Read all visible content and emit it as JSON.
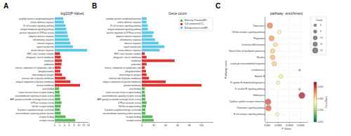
{
  "chart_data": [
    {
      "type": "bar",
      "orientation": "horizontal",
      "title": "-log10(P-Value)",
      "annotations": [
        "A"
      ],
      "categories": [
        "peptidyl-tyrosine autophosphorylation",
        "cellular defense response",
        "B cell receptor signaling pathway",
        "integrin-mediated signaling pathway",
        "positive regulation of GTPase activity",
        "adaptive immune response",
        "inflammatory response",
        "immune response",
        "signal transduction",
        "innate immune response",
        "MHC class I protein complex",
        "phagocytic vesicle membrane",
        "membrane",
        "podosome",
        "intrinsic component of cytoplasmic side of",
        "phagolysosomes",
        "immunological synapse",
        "external side of plasma membrane",
        "integral component of plasma membrane",
        "plasma membrane",
        "actin binding",
        "tumor necrosis factor receptor binding",
        "transmembrane signaling receptor activity",
        "ARF guanyl-nucleotide exchange factor activity",
        "GTPase activator activity",
        "Toll-like receptor binding",
        "G-protein coupled purinergic nucleotide",
        "non-membrane spanning protein tyrosine",
        "receptor binding",
        "receptor activity"
      ],
      "values": [
        3.5,
        3.8,
        4.5,
        4.8,
        5.2,
        5.5,
        6.0,
        6.5,
        7.5,
        13.5,
        2.2,
        2.5,
        3.0,
        2.8,
        2.5,
        2.3,
        3.0,
        4.5,
        6.5,
        10.5,
        1.8,
        2.0,
        2.2,
        2.3,
        2.8,
        2.5,
        2.2,
        2.5,
        4.5,
        8.5
      ],
      "colors": [
        "#5bc8e8",
        "#5bc8e8",
        "#5bc8e8",
        "#5bc8e8",
        "#5bc8e8",
        "#5bc8e8",
        "#5bc8e8",
        "#5bc8e8",
        "#5bc8e8",
        "#5bc8e8",
        "#e03030",
        "#e03030",
        "#e03030",
        "#e03030",
        "#e03030",
        "#e03030",
        "#e03030",
        "#e03030",
        "#e03030",
        "#e03030",
        "#5cb85c",
        "#5cb85c",
        "#5cb85c",
        "#5cb85c",
        "#5cb85c",
        "#5cb85c",
        "#5cb85c",
        "#5cb85c",
        "#5cb85c",
        "#5cb85c"
      ],
      "xlim": [
        0,
        14
      ],
      "xticks": [
        0,
        2,
        4,
        6,
        8,
        10,
        12,
        14
      ]
    },
    {
      "type": "bar",
      "orientation": "horizontal",
      "title": "Gene count",
      "annotations": [
        "B"
      ],
      "categories": [
        "peptidyl-tyrosine autophosphorylation",
        "cellular defense response",
        "B cell receptor signaling pathway",
        "integrin-mediated signaling pathway",
        "positive regulation of GTPase activity",
        "adaptive immune response",
        "inflammatory response",
        "immune response",
        "signal transduction",
        "innate immune response",
        "MHC class I protein complex",
        "phagocytic vesicle membrane",
        "membrane",
        "podosome",
        "intrinsic component of cytoplasmic side",
        "phagolysosomes",
        "immunological synapse",
        "external side of plasma membrane",
        "integral component of plasma membrane",
        "plasma membrane",
        "actin binding",
        "tumor necrosis factor receptor binding",
        "transmembrane signaling receptor activity",
        "ARF guanyl-nucleotide exchange factor activity",
        "GTPase activator activity",
        "Toll-like receptor binding",
        "G-protein coupled purinergic nucleotide",
        "non-membrane spanning protein tyrosine",
        "receptor binding",
        "receptor activity"
      ],
      "series": [
        {
          "name": "Molecular Function(MF)",
          "color": "#5cb85c",
          "values": [
            null,
            null,
            null,
            null,
            null,
            null,
            null,
            null,
            null,
            null,
            null,
            null,
            null,
            null,
            null,
            null,
            null,
            null,
            null,
            null,
            5,
            5,
            6,
            6,
            8,
            7,
            6,
            6,
            18,
            20
          ]
        },
        {
          "name": "Cell component(CC)",
          "color": "#e03030",
          "values": [
            null,
            null,
            null,
            null,
            null,
            null,
            null,
            null,
            null,
            null,
            5,
            8,
            55,
            8,
            5,
            7,
            8,
            12,
            40,
            100,
            null,
            null,
            null,
            null,
            null,
            null,
            null,
            null,
            null,
            null
          ]
        },
        {
          "name": "Biological processes(BP)",
          "color": "#5bc8e8",
          "values": [
            8,
            8,
            10,
            10,
            20,
            18,
            22,
            28,
            38,
            30,
            null,
            null,
            null,
            null,
            null,
            null,
            null,
            null,
            null,
            null,
            null,
            null,
            null,
            null,
            null,
            null,
            null,
            null,
            null,
            null
          ]
        }
      ],
      "legend": "upper right",
      "xlim": [
        0,
        120
      ],
      "xticks": [
        0,
        20,
        40,
        60,
        80,
        100
      ]
    },
    {
      "type": "scatter",
      "orientation": "horizontal",
      "title": "pathway  enrichment",
      "annotations": [
        "C"
      ],
      "xlabel": "P Value",
      "ylabel": "Pathway name",
      "categories": [
        "Tuberculosis",
        "Toll-like receptor signaling pathway",
        "Phagosome",
        "Osteoclast differentiation",
        "Natural killer cell mediated cytotoxicity",
        "Measles",
        "Leukocyte transendothelial migration",
        "Leishmaniasis",
        "Hepatitis B",
        "Fc gamma R-mediated phagocytosis",
        "Fc epsilon RI signaling pathway",
        "Endocytosis",
        "Cytokine-cytokine receptor interaction",
        "Chemokine signaling pathway",
        "B cell receptor signaling pathway"
      ],
      "values": [
        5e-05,
        0.00022,
        8e-05,
        0.00015,
        0.0001,
        0.0001,
        0.00013,
        0.00058,
        0.00025,
        0.0002,
        0.00058,
        0.00062,
        1.8e-05,
        2.5e-05,
        0.00018
      ],
      "sizes": [
        14,
        9,
        13,
        10,
        11,
        12,
        11,
        4,
        10,
        8,
        4,
        16,
        15,
        14,
        8
      ],
      "size_legend": {
        "title": "Count",
        "values": [
          6,
          8,
          10,
          11,
          14
        ]
      },
      "color_values": [
        0.55,
        0.38,
        0.52,
        0.42,
        0.45,
        0.48,
        0.45,
        0.15,
        0.4,
        0.32,
        0.18,
        0.68,
        0.6,
        0.58,
        0.32
      ],
      "color_range": [
        0.0,
        0.688
      ],
      "color_ticks": [
        {
          "value": 0.0,
          "label": "0.000"
        },
        {
          "value": 0.2,
          "label": "0.200"
        },
        {
          "value": 0.4,
          "label": "0.400"
        },
        {
          "value": 0.6,
          "label": "0.600"
        }
      ],
      "color_label": "GeneRatio",
      "xlim": [
        -3e-05,
        0.00072
      ],
      "xticks": [
        {
          "value": 0.0,
          "label": "0.000"
        },
        0.0002,
        0.0004,
        0.0006
      ],
      "grid": true
    }
  ]
}
